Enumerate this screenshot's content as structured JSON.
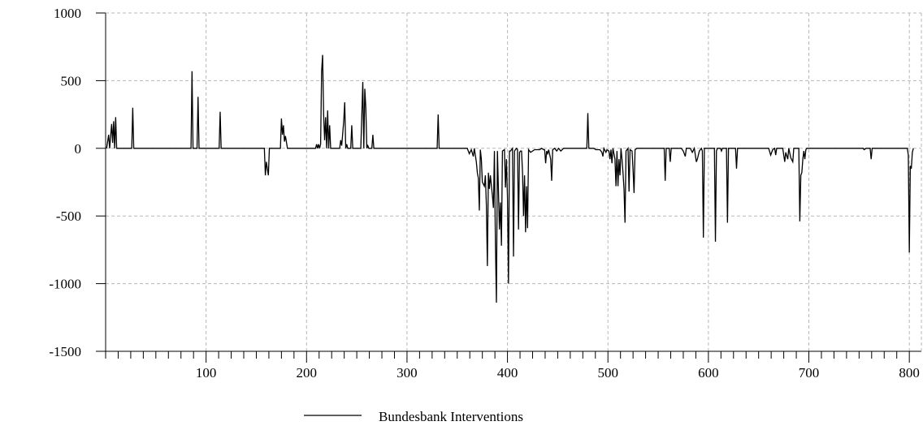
{
  "chart_data": {
    "type": "line",
    "title": "",
    "xlabel": "",
    "ylabel": "",
    "xlim": [
      0,
      812
    ],
    "ylim": [
      -1500,
      1000
    ],
    "x_ticks": [
      100,
      200,
      300,
      400,
      500,
      600,
      700,
      800
    ],
    "y_ticks": [
      1000,
      500,
      0,
      -500,
      -1000,
      -1500
    ],
    "x_minor_step": 12.5,
    "grid": true,
    "legend": {
      "placement": "bottom-center"
    },
    "series": [
      {
        "name": "Bundesbank Interventions",
        "color": "#000000",
        "points": [
          [
            1,
            0
          ],
          [
            3,
            100
          ],
          [
            4,
            0
          ],
          [
            6,
            180
          ],
          [
            7,
            40
          ],
          [
            8,
            200
          ],
          [
            9,
            0
          ],
          [
            10,
            230
          ],
          [
            11,
            0
          ],
          [
            26,
            0
          ],
          [
            27,
            300
          ],
          [
            28,
            0
          ],
          [
            85,
            0
          ],
          [
            86,
            570
          ],
          [
            87,
            0
          ],
          [
            91,
            0
          ],
          [
            92,
            380
          ],
          [
            93,
            0
          ],
          [
            113,
            0
          ],
          [
            114,
            270
          ],
          [
            115,
            0
          ],
          [
            158,
            0
          ],
          [
            159,
            -200
          ],
          [
            160,
            -100
          ],
          [
            162,
            -200
          ],
          [
            163,
            0
          ],
          [
            174,
            0
          ],
          [
            175,
            220
          ],
          [
            176,
            100
          ],
          [
            177,
            170
          ],
          [
            178,
            50
          ],
          [
            179,
            90
          ],
          [
            181,
            0
          ],
          [
            209,
            0
          ],
          [
            210,
            30
          ],
          [
            211,
            0
          ],
          [
            212,
            30
          ],
          [
            213,
            0
          ],
          [
            214,
            30
          ],
          [
            215,
            570
          ],
          [
            216,
            690
          ],
          [
            217,
            250
          ],
          [
            218,
            60
          ],
          [
            219,
            230
          ],
          [
            220,
            0
          ],
          [
            221,
            280
          ],
          [
            222,
            0
          ],
          [
            223,
            170
          ],
          [
            224,
            0
          ],
          [
            233,
            0
          ],
          [
            234,
            60
          ],
          [
            235,
            20
          ],
          [
            237,
            200
          ],
          [
            238,
            340
          ],
          [
            239,
            0
          ],
          [
            240,
            30
          ],
          [
            241,
            0
          ],
          [
            244,
            0
          ],
          [
            245,
            170
          ],
          [
            246,
            0
          ],
          [
            254,
            0
          ],
          [
            255,
            240
          ],
          [
            256,
            490
          ],
          [
            257,
            0
          ],
          [
            258,
            440
          ],
          [
            259,
            300
          ],
          [
            260,
            0
          ],
          [
            261,
            20
          ],
          [
            262,
            0
          ],
          [
            265,
            0
          ],
          [
            266,
            100
          ],
          [
            267,
            0
          ],
          [
            330,
            0
          ],
          [
            331,
            250
          ],
          [
            332,
            0
          ],
          [
            360,
            0
          ],
          [
            362,
            -40
          ],
          [
            364,
            -10
          ],
          [
            366,
            -60
          ],
          [
            367,
            0
          ],
          [
            369,
            -100
          ],
          [
            370,
            -180
          ],
          [
            371,
            -220
          ],
          [
            372,
            -460
          ],
          [
            373,
            -10
          ],
          [
            374,
            -80
          ],
          [
            375,
            -250
          ],
          [
            377,
            -280
          ],
          [
            378,
            -200
          ],
          [
            379,
            -420
          ],
          [
            380,
            -870
          ],
          [
            381,
            -180
          ],
          [
            382,
            -300
          ],
          [
            383,
            -200
          ],
          [
            385,
            -350
          ],
          [
            386,
            -440
          ],
          [
            387,
            -20
          ],
          [
            388,
            -700
          ],
          [
            389,
            -1140
          ],
          [
            390,
            -20
          ],
          [
            392,
            -600
          ],
          [
            393,
            -400
          ],
          [
            394,
            -720
          ],
          [
            395,
            -20
          ],
          [
            397,
            -10
          ],
          [
            398,
            -290
          ],
          [
            399,
            -80
          ],
          [
            400,
            -360
          ],
          [
            401,
            -1000
          ],
          [
            402,
            -20
          ],
          [
            403,
            -20
          ],
          [
            405,
            0
          ],
          [
            406,
            -800
          ],
          [
            407,
            -20
          ],
          [
            409,
            0
          ],
          [
            410,
            -10
          ],
          [
            411,
            -600
          ],
          [
            412,
            -30
          ],
          [
            413,
            -20
          ],
          [
            414,
            -20
          ],
          [
            415,
            -180
          ],
          [
            416,
            -500
          ],
          [
            417,
            -200
          ],
          [
            418,
            -620
          ],
          [
            419,
            -280
          ],
          [
            420,
            -590
          ],
          [
            421,
            -10
          ],
          [
            423,
            -30
          ],
          [
            425,
            -20
          ],
          [
            427,
            -10
          ],
          [
            429,
            -10
          ],
          [
            432,
            -10
          ],
          [
            434,
            0
          ],
          [
            436,
            -10
          ],
          [
            437,
            -10
          ],
          [
            438,
            -110
          ],
          [
            439,
            -20
          ],
          [
            440,
            -40
          ],
          [
            441,
            -10
          ],
          [
            443,
            -80
          ],
          [
            444,
            -240
          ],
          [
            445,
            -10
          ],
          [
            447,
            0
          ],
          [
            449,
            -20
          ],
          [
            451,
            0
          ],
          [
            453,
            -20
          ],
          [
            456,
            0
          ],
          [
            479,
            0
          ],
          [
            480,
            260
          ],
          [
            481,
            0
          ],
          [
            486,
            0
          ],
          [
            488,
            -10
          ],
          [
            490,
            -10
          ],
          [
            492,
            -10
          ],
          [
            494,
            -30
          ],
          [
            495,
            -60
          ],
          [
            496,
            0
          ],
          [
            498,
            -30
          ],
          [
            499,
            -10
          ],
          [
            501,
            -20
          ],
          [
            502,
            -80
          ],
          [
            503,
            -10
          ],
          [
            504,
            -110
          ],
          [
            505,
            0
          ],
          [
            507,
            -80
          ],
          [
            508,
            -280
          ],
          [
            509,
            -20
          ],
          [
            510,
            -280
          ],
          [
            511,
            -80
          ],
          [
            512,
            -200
          ],
          [
            513,
            0
          ],
          [
            514,
            -80
          ],
          [
            515,
            -180
          ],
          [
            516,
            -300
          ],
          [
            517,
            -550
          ],
          [
            518,
            -20
          ],
          [
            520,
            0
          ],
          [
            521,
            -320
          ],
          [
            522,
            -10
          ],
          [
            524,
            -20
          ],
          [
            525,
            -160
          ],
          [
            526,
            -330
          ],
          [
            527,
            -10
          ],
          [
            529,
            0
          ],
          [
            556,
            0
          ],
          [
            557,
            -240
          ],
          [
            558,
            0
          ],
          [
            561,
            0
          ],
          [
            562,
            -100
          ],
          [
            563,
            0
          ],
          [
            573,
            0
          ],
          [
            575,
            -20
          ],
          [
            577,
            -60
          ],
          [
            578,
            0
          ],
          [
            582,
            0
          ],
          [
            584,
            -30
          ],
          [
            586,
            0
          ],
          [
            588,
            -100
          ],
          [
            589,
            -80
          ],
          [
            591,
            -20
          ],
          [
            593,
            0
          ],
          [
            594,
            -20
          ],
          [
            595,
            -660
          ],
          [
            596,
            0
          ],
          [
            606,
            0
          ],
          [
            607,
            -690
          ],
          [
            608,
            -20
          ],
          [
            609,
            0
          ],
          [
            612,
            0
          ],
          [
            613,
            -20
          ],
          [
            614,
            0
          ],
          [
            618,
            0
          ],
          [
            619,
            -550
          ],
          [
            620,
            0
          ],
          [
            627,
            0
          ],
          [
            628,
            -150
          ],
          [
            629,
            0
          ],
          [
            660,
            0
          ],
          [
            662,
            -50
          ],
          [
            664,
            -10
          ],
          [
            666,
            0
          ],
          [
            667,
            -50
          ],
          [
            668,
            0
          ],
          [
            674,
            0
          ],
          [
            676,
            -100
          ],
          [
            677,
            -30
          ],
          [
            679,
            -80
          ],
          [
            680,
            0
          ],
          [
            682,
            -70
          ],
          [
            684,
            -100
          ],
          [
            685,
            0
          ],
          [
            690,
            0
          ],
          [
            691,
            -540
          ],
          [
            692,
            -200
          ],
          [
            693,
            -180
          ],
          [
            694,
            -80
          ],
          [
            695,
            -20
          ],
          [
            696,
            -80
          ],
          [
            697,
            -10
          ],
          [
            698,
            0
          ],
          [
            754,
            0
          ],
          [
            755,
            -10
          ],
          [
            757,
            0
          ],
          [
            761,
            0
          ],
          [
            762,
            -80
          ],
          [
            763,
            0
          ],
          [
            798,
            0
          ],
          [
            799,
            -50
          ],
          [
            800,
            -770
          ],
          [
            801,
            -130
          ],
          [
            802,
            -150
          ],
          [
            803,
            -30
          ],
          [
            804,
            0
          ]
        ]
      }
    ]
  }
}
